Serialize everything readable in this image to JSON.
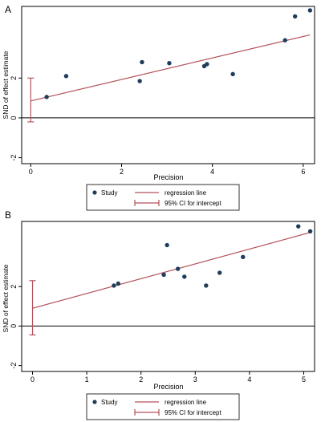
{
  "colors": {
    "point": "#1f3d5c",
    "regression": "#b5525c",
    "ci": "#b5525c",
    "axis": "#000000",
    "frame": "#000000",
    "grid": "#dddddd"
  },
  "chart_data": [
    {
      "panel_label": "A",
      "type": "scatter",
      "title": "",
      "xlabel": "Precision",
      "ylabel": "SND of effect estimate",
      "xlim": [
        -0.2,
        6.25
      ],
      "ylim": [
        -2.3,
        5.6
      ],
      "xticks": [
        0,
        2,
        4,
        6
      ],
      "yticks": [
        -2,
        0,
        2
      ],
      "x": [
        0.35,
        0.78,
        2.4,
        2.45,
        3.05,
        3.82,
        3.88,
        4.45,
        5.6,
        5.82,
        6.15
      ],
      "y": [
        1.05,
        2.1,
        1.85,
        2.8,
        2.75,
        2.6,
        2.7,
        2.2,
        3.9,
        5.1,
        5.4
      ],
      "regression_line": {
        "intercept": 0.85,
        "slope": 0.54,
        "x_range": [
          0,
          6.15
        ]
      },
      "ci_intercept": [
        -0.2,
        2.0
      ],
      "zero_line": 0,
      "grid": false,
      "legend_position": "bottom",
      "legend": {
        "study": "Study",
        "regression": "regression line",
        "ci": "95% CI for intercept"
      }
    },
    {
      "panel_label": "B",
      "type": "scatter",
      "title": "",
      "xlabel": "Precision",
      "ylabel": "SND of effect estimate",
      "xlim": [
        -0.2,
        5.2
      ],
      "ylim": [
        -2.3,
        5.3
      ],
      "xticks": [
        0,
        1,
        2,
        3,
        4,
        5
      ],
      "yticks": [
        -2,
        0,
        2
      ],
      "x": [
        1.5,
        1.58,
        2.42,
        2.48,
        2.68,
        2.8,
        3.2,
        3.45,
        3.88,
        4.9,
        5.12
      ],
      "y": [
        2.05,
        2.15,
        2.6,
        4.1,
        2.9,
        2.5,
        2.05,
        2.7,
        3.5,
        5.05,
        4.8
      ],
      "regression_line": {
        "intercept": 0.9,
        "slope": 0.75,
        "x_range": [
          0,
          5.12
        ]
      },
      "ci_intercept": [
        -0.45,
        2.3
      ],
      "zero_line": 0,
      "grid": false,
      "legend_position": "bottom",
      "legend": {
        "study": "Study",
        "regression": "regression line",
        "ci": "95% CI for intercept"
      }
    }
  ]
}
